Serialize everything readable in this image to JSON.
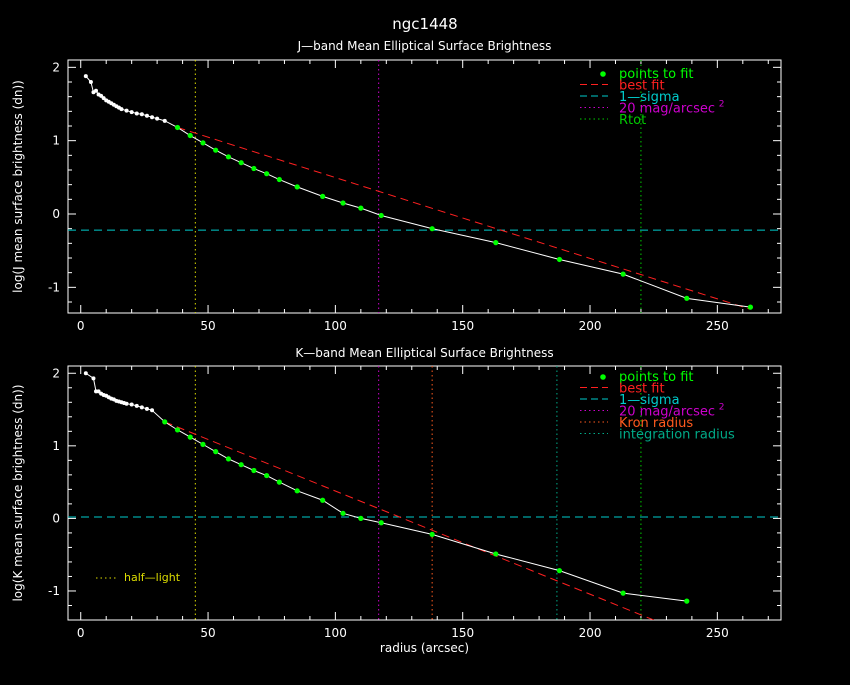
{
  "title": "ngc1448",
  "colors": {
    "background": "#000000",
    "axes": "#ffffff",
    "points_to_fit": "#00ff00",
    "best_fit": "#ff2020",
    "one_sigma": "#00cccc",
    "mag20": "#cc00cc",
    "rtot": "#00cc00",
    "kron": "#ff5a1e",
    "integration": "#00aa88",
    "half_light": "#dddd00",
    "white": "#ffffff"
  },
  "chart_data": [
    {
      "type": "line",
      "title": "J—band Mean Elliptical Surface Brightness",
      "xlabel": "",
      "ylabel": "log(J mean surface brightness (dn))",
      "xlim": [
        -5,
        275
      ],
      "ylim": [
        -1.35,
        2.1
      ],
      "xticks": [
        0,
        50,
        100,
        150,
        200,
        250
      ],
      "yticks": [
        -1,
        0,
        1,
        2
      ],
      "legend": [
        {
          "key": "points",
          "label": "points to fit",
          "color": "#00ff00"
        },
        {
          "key": "best",
          "label": "best fit",
          "color": "#ff2020"
        },
        {
          "key": "sigma",
          "label": "1—sigma",
          "color": "#00cccc"
        },
        {
          "key": "mag20",
          "label": "20 mag/arcsec",
          "sup": "2",
          "color": "#cc00cc"
        },
        {
          "key": "rtot",
          "label": "Rtot",
          "color": "#00cc00"
        }
      ],
      "profile": {
        "x": [
          2,
          4,
          5,
          6,
          7,
          8,
          9,
          10,
          11,
          12,
          13,
          14,
          15,
          16,
          18,
          20,
          22,
          24,
          26,
          28,
          30,
          33,
          38,
          43,
          48,
          53,
          58,
          63,
          68,
          73,
          78,
          85,
          95,
          103,
          110,
          118,
          138,
          163,
          188,
          213,
          238,
          263
        ],
        "y": [
          1.88,
          1.8,
          1.66,
          1.68,
          1.63,
          1.61,
          1.58,
          1.55,
          1.53,
          1.51,
          1.49,
          1.47,
          1.45,
          1.43,
          1.41,
          1.39,
          1.37,
          1.36,
          1.34,
          1.32,
          1.3,
          1.27,
          1.18,
          1.07,
          0.97,
          0.87,
          0.78,
          0.7,
          0.62,
          0.55,
          0.47,
          0.37,
          0.24,
          0.15,
          0.08,
          -0.02,
          -0.2,
          -0.39,
          -0.62,
          -0.82,
          -1.15,
          -1.27
        ]
      },
      "fit_points": {
        "x": [
          38,
          43,
          48,
          53,
          58,
          63,
          68,
          73,
          78,
          85,
          95,
          103,
          110,
          118,
          138,
          163,
          188,
          213,
          238,
          263
        ],
        "y": [
          1.18,
          1.07,
          0.97,
          0.87,
          0.78,
          0.7,
          0.62,
          0.55,
          0.47,
          0.37,
          0.24,
          0.15,
          0.08,
          -0.02,
          -0.2,
          -0.39,
          -0.62,
          -0.82,
          -1.15,
          -1.27
        ]
      },
      "best_fit": {
        "x": [
          38,
          263
        ],
        "y": [
          1.18,
          -1.3
        ]
      },
      "one_sigma_level": -0.22,
      "mag20_radius": 117,
      "rtot_radius": 220,
      "half_light_radius": 45
    },
    {
      "type": "line",
      "title": "K—band Mean Elliptical Surface Brightness",
      "xlabel": "radius (arcsec)",
      "ylabel": "log(K mean surface brightness (dn))",
      "xlim": [
        -5,
        275
      ],
      "ylim": [
        -1.4,
        2.1
      ],
      "xticks": [
        0,
        50,
        100,
        150,
        200,
        250
      ],
      "yticks": [
        -1,
        0,
        1,
        2
      ],
      "legend": [
        {
          "key": "points",
          "label": "points to fit",
          "color": "#00ff00"
        },
        {
          "key": "best",
          "label": "best fit",
          "color": "#ff2020"
        },
        {
          "key": "sigma",
          "label": "1—sigma",
          "color": "#00cccc"
        },
        {
          "key": "mag20",
          "label": "20 mag/arcsec",
          "sup": "2",
          "color": "#cc00cc"
        },
        {
          "key": "kron",
          "label": "Kron radius",
          "color": "#ff5a1e"
        },
        {
          "key": "integ",
          "label": "integration radius",
          "color": "#00aa88"
        }
      ],
      "half_light_label": "half—light",
      "profile": {
        "x": [
          2,
          5,
          6,
          7,
          8,
          9,
          10,
          11,
          12,
          13,
          14,
          15,
          16,
          17,
          18,
          20,
          22,
          24,
          26,
          28,
          33,
          38,
          43,
          48,
          53,
          58,
          63,
          68,
          73,
          78,
          85,
          95,
          103,
          110,
          118,
          138,
          163,
          188,
          213,
          238
        ],
        "y": [
          2.0,
          1.93,
          1.75,
          1.75,
          1.72,
          1.7,
          1.69,
          1.67,
          1.65,
          1.64,
          1.62,
          1.61,
          1.6,
          1.59,
          1.58,
          1.57,
          1.55,
          1.53,
          1.51,
          1.49,
          1.33,
          1.22,
          1.12,
          1.02,
          0.92,
          0.82,
          0.74,
          0.66,
          0.59,
          0.5,
          0.38,
          0.25,
          0.07,
          0.0,
          -0.06,
          -0.22,
          -0.49,
          -0.72,
          -1.03,
          -1.14
        ]
      },
      "fit_points": {
        "x": [
          33,
          38,
          43,
          48,
          53,
          58,
          63,
          68,
          73,
          78,
          85,
          95,
          103,
          110,
          118,
          138,
          163,
          188,
          213,
          238
        ],
        "y": [
          1.33,
          1.22,
          1.12,
          1.02,
          0.92,
          0.82,
          0.74,
          0.66,
          0.59,
          0.5,
          0.38,
          0.25,
          0.07,
          0.0,
          -0.06,
          -0.22,
          -0.49,
          -0.72,
          -1.03,
          -1.14
        ]
      },
      "best_fit": {
        "x": [
          33,
          225
        ],
        "y": [
          1.33,
          -1.4
        ]
      },
      "one_sigma_level": 0.02,
      "mag20_radius": 117,
      "kron_radius": 138,
      "integration_radius": 187,
      "rtot_radius": 220,
      "half_light_radius": 45
    }
  ]
}
